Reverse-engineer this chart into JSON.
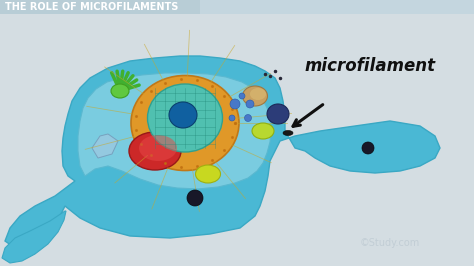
{
  "title": "THE ROLE OF MICROFILAMENTS",
  "annotation": "microfilament",
  "watermark": "©Study.com",
  "bg_color": "#d4dde2",
  "header_bg": "#b8cdd6",
  "header_text_color": "#ffffff",
  "cell_outer_color": "#4ab8d4",
  "cell_outer_edge": "#3aa8c4",
  "cell_inner_color": "#7acce0",
  "cell_inner_edge": "#5ab8d0",
  "title_fontsize": 7.0,
  "annotation_fontsize": 12,
  "watermark_color": "#c0ccd4",
  "watermark_fontsize": 7
}
